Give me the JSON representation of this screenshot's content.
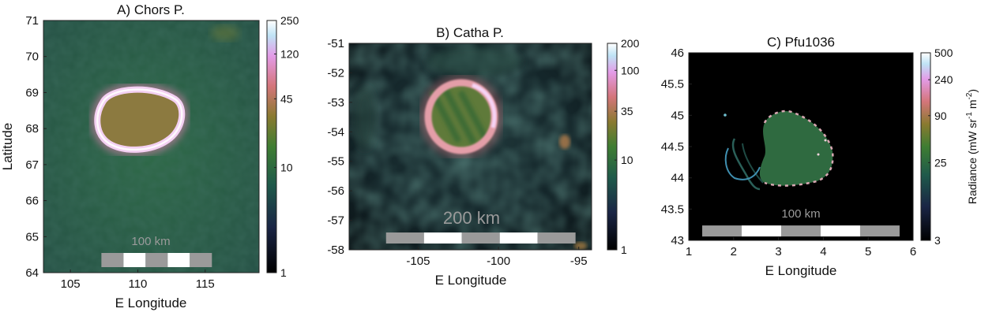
{
  "colorbar_label": "Radiance (mW sr",
  "colorbar_label_exp1": "-1",
  "colorbar_label_mid": " m",
  "colorbar_label_exp2": "-2",
  "colorbar_label_end": ")",
  "colors": {
    "background": "#1f4f40",
    "dark": "#0b1a14",
    "ring": "#f2c9ee",
    "interior": "#8f7a3c",
    "scalebar_gray": "#9a9a9a",
    "scalebar_white": "#ffffff"
  },
  "chart_data": [
    {
      "type": "heatmap",
      "title": "A) Chors P.",
      "xlabel": "E Longitude",
      "ylabel": "Latitude",
      "xlim": [
        103,
        119
      ],
      "ylim": [
        64,
        71
      ],
      "xticks": [
        105,
        110,
        115
      ],
      "yticks": [
        64,
        65,
        66,
        67,
        68,
        69,
        70,
        71
      ],
      "colorbar": {
        "scale": "log",
        "range": [
          1,
          250
        ],
        "ticks": [
          1,
          10,
          45,
          120,
          250
        ]
      },
      "scalebar": {
        "label": "100 km",
        "x_start": 107.3,
        "x_end": 115.5,
        "y": 64.35,
        "segments": 5
      }
    },
    {
      "type": "heatmap",
      "title": "B) Catha P.",
      "xlabel": "E Longitude",
      "ylabel": "",
      "xlim": [
        -109.3,
        -94.2
      ],
      "ylim": [
        -58,
        -51
      ],
      "xticks": [
        -105,
        -100,
        -95
      ],
      "yticks": [
        -51,
        -52,
        -53,
        -54,
        -55,
        -56,
        -57,
        -58
      ],
      "colorbar": {
        "scale": "log",
        "range": [
          1,
          200
        ],
        "ticks": [
          1,
          10,
          35,
          100,
          200
        ]
      },
      "scalebar": {
        "label": "200 km",
        "x_start": -107,
        "x_end": -95.2,
        "y": -57.6,
        "segments": 5
      }
    },
    {
      "type": "heatmap",
      "title": "C) Pfu1036",
      "xlabel": "E Longitude",
      "ylabel": "",
      "xlim": [
        1,
        6
      ],
      "ylim": [
        43,
        46
      ],
      "xticks": [
        1,
        2,
        3,
        4,
        5,
        6
      ],
      "yticks": [
        43,
        43.5,
        44,
        44.5,
        45,
        45.5,
        46
      ],
      "colorbar": {
        "scale": "log",
        "range": [
          3,
          500
        ],
        "ticks": [
          3,
          25,
          90,
          240,
          500
        ]
      },
      "scalebar": {
        "label": "100 km",
        "x_start": 1.3,
        "x_end": 5.7,
        "y": 43.15,
        "segments": 5
      }
    }
  ]
}
